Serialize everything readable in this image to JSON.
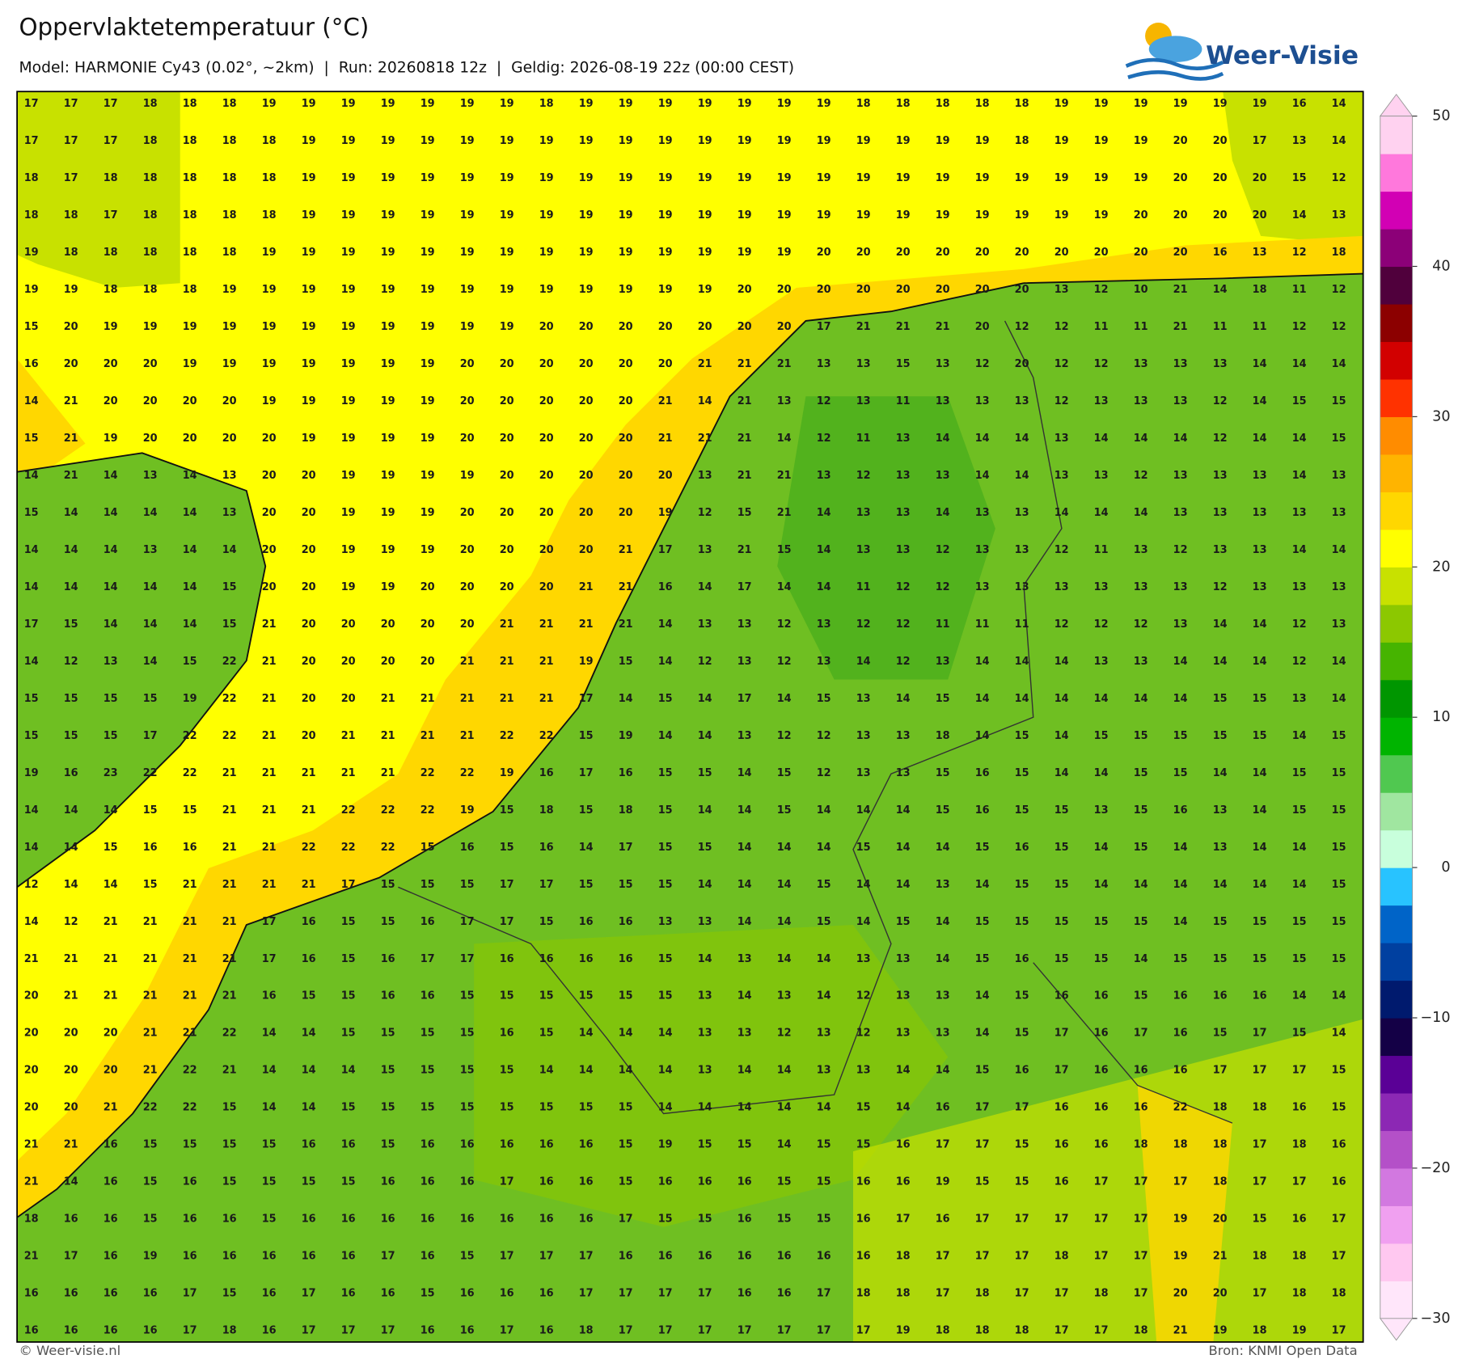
{
  "header": {
    "title": "Oppervlaktetemperatuur (°C)",
    "subtitle": "Model: HARMONIE Cy43 (0.02°, ~2km)  |  Run: 20260818 12z  |  Geldig: 2026-08-19 22z (00:00 CEST)",
    "logo": "Weer-Visie"
  },
  "map": {
    "grid": [
      [
        17,
        17,
        17,
        18,
        18,
        18,
        19,
        19,
        19,
        19,
        19,
        19,
        19,
        18,
        19,
        19,
        19,
        19,
        19,
        19,
        19,
        18,
        18,
        18,
        18,
        18,
        19,
        19,
        19,
        19,
        19,
        19,
        16,
        14
      ],
      [
        17,
        17,
        17,
        18,
        18,
        18,
        18,
        19,
        19,
        19,
        19,
        19,
        19,
        19,
        19,
        19,
        19,
        19,
        19,
        19,
        19,
        19,
        19,
        19,
        19,
        18,
        19,
        19,
        19,
        20,
        20,
        17,
        13,
        14
      ],
      [
        18,
        17,
        18,
        18,
        18,
        18,
        18,
        19,
        19,
        19,
        19,
        19,
        19,
        19,
        19,
        19,
        19,
        19,
        19,
        19,
        19,
        19,
        19,
        19,
        19,
        19,
        19,
        19,
        19,
        20,
        20,
        20,
        15,
        12
      ],
      [
        18,
        18,
        17,
        18,
        18,
        18,
        18,
        19,
        19,
        19,
        19,
        19,
        19,
        19,
        19,
        19,
        19,
        19,
        19,
        19,
        19,
        19,
        19,
        19,
        19,
        19,
        19,
        19,
        20,
        20,
        20,
        20,
        14,
        13
      ],
      [
        19,
        18,
        18,
        18,
        18,
        18,
        19,
        19,
        19,
        19,
        19,
        19,
        19,
        19,
        19,
        19,
        19,
        19,
        19,
        19,
        20,
        20,
        20,
        20,
        20,
        20,
        20,
        20,
        20,
        20,
        16,
        13,
        12,
        18
      ],
      [
        19,
        19,
        18,
        18,
        18,
        19,
        19,
        19,
        19,
        19,
        19,
        19,
        19,
        19,
        19,
        19,
        19,
        19,
        20,
        20,
        20,
        20,
        20,
        20,
        20,
        20,
        13,
        12,
        10,
        21,
        14,
        18,
        11,
        12
      ],
      [
        15,
        20,
        19,
        19,
        19,
        19,
        19,
        19,
        19,
        19,
        19,
        19,
        19,
        20,
        20,
        20,
        20,
        20,
        20,
        20,
        17,
        21,
        21,
        21,
        20,
        12,
        12,
        11,
        11,
        21,
        11,
        11,
        12,
        12
      ],
      [
        16,
        20,
        20,
        20,
        19,
        19,
        19,
        19,
        19,
        19,
        19,
        20,
        20,
        20,
        20,
        20,
        20,
        21,
        21,
        21,
        13,
        13,
        15,
        13,
        12,
        20,
        12,
        12,
        13,
        13,
        13,
        14,
        14,
        14
      ],
      [
        14,
        21,
        20,
        20,
        20,
        20,
        19,
        19,
        19,
        19,
        19,
        20,
        20,
        20,
        20,
        20,
        21,
        14,
        21,
        13,
        12,
        13,
        11,
        13,
        13,
        13,
        12,
        13,
        13,
        13,
        12,
        14,
        15,
        15
      ],
      [
        15,
        21,
        19,
        20,
        20,
        20,
        20,
        19,
        19,
        19,
        19,
        20,
        20,
        20,
        20,
        20,
        21,
        21,
        21,
        14,
        12,
        11,
        13,
        14,
        14,
        14,
        13,
        14,
        14,
        14,
        12,
        14,
        14,
        15
      ],
      [
        14,
        21,
        14,
        13,
        14,
        13,
        20,
        20,
        19,
        19,
        19,
        19,
        20,
        20,
        20,
        20,
        20,
        13,
        21,
        21,
        13,
        12,
        13,
        13,
        14,
        14,
        13,
        13,
        12,
        13,
        13,
        13,
        14,
        13
      ],
      [
        15,
        14,
        14,
        14,
        14,
        13,
        20,
        20,
        19,
        19,
        19,
        20,
        20,
        20,
        20,
        20,
        19,
        12,
        15,
        21,
        14,
        13,
        13,
        14,
        13,
        13,
        14,
        14,
        14,
        13,
        13,
        13,
        13,
        13
      ],
      [
        14,
        14,
        14,
        13,
        14,
        14,
        20,
        20,
        19,
        19,
        19,
        20,
        20,
        20,
        20,
        21,
        17,
        13,
        21,
        15,
        14,
        13,
        13,
        12,
        13,
        13,
        12,
        11,
        13,
        12,
        13,
        13,
        14,
        14
      ],
      [
        14,
        14,
        14,
        14,
        14,
        15,
        20,
        20,
        19,
        19,
        20,
        20,
        20,
        20,
        21,
        21,
        16,
        14,
        17,
        14,
        14,
        11,
        12,
        12,
        13,
        13,
        13,
        13,
        13,
        13,
        12,
        13,
        13,
        13
      ],
      [
        17,
        15,
        14,
        14,
        14,
        15,
        21,
        20,
        20,
        20,
        20,
        20,
        21,
        21,
        21,
        21,
        14,
        13,
        13,
        12,
        13,
        12,
        12,
        11,
        11,
        11,
        12,
        12,
        12,
        13,
        14,
        14,
        12,
        13
      ],
      [
        14,
        12,
        13,
        14,
        15,
        22,
        21,
        20,
        20,
        20,
        20,
        21,
        21,
        21,
        19,
        15,
        14,
        12,
        13,
        12,
        13,
        14,
        12,
        13,
        14,
        14,
        14,
        13,
        13,
        14,
        14,
        14,
        12,
        14
      ],
      [
        15,
        15,
        15,
        15,
        19,
        22,
        21,
        20,
        20,
        21,
        21,
        21,
        21,
        21,
        17,
        14,
        15,
        14,
        17,
        14,
        15,
        13,
        14,
        15,
        14,
        14,
        14,
        14,
        14,
        14,
        15,
        15,
        13,
        14
      ],
      [
        15,
        15,
        15,
        17,
        22,
        22,
        21,
        20,
        21,
        21,
        21,
        21,
        22,
        22,
        15,
        19,
        14,
        14,
        13,
        12,
        12,
        13,
        13,
        18,
        14,
        15,
        14,
        15,
        15,
        15,
        15,
        15,
        14,
        15
      ],
      [
        19,
        16,
        23,
        22,
        22,
        21,
        21,
        21,
        21,
        21,
        22,
        22,
        19,
        16,
        17,
        16,
        15,
        15,
        14,
        15,
        12,
        13,
        13,
        15,
        16,
        15,
        14,
        14,
        15,
        15,
        14,
        14,
        15,
        15
      ],
      [
        14,
        14,
        14,
        15,
        15,
        21,
        21,
        21,
        22,
        22,
        22,
        19,
        15,
        18,
        15,
        18,
        15,
        14,
        14,
        15,
        14,
        14,
        14,
        15,
        16,
        15,
        15,
        13,
        15,
        16,
        13,
        14,
        15,
        15
      ],
      [
        14,
        14,
        15,
        16,
        16,
        21,
        21,
        22,
        22,
        22,
        15,
        16,
        15,
        16,
        14,
        17,
        15,
        15,
        14,
        14,
        14,
        15,
        14,
        14,
        15,
        16,
        15,
        14,
        15,
        14,
        13,
        14,
        14,
        15
      ],
      [
        12,
        14,
        14,
        15,
        21,
        21,
        21,
        21,
        17,
        15,
        15,
        15,
        17,
        17,
        15,
        15,
        15,
        14,
        14,
        14,
        15,
        14,
        14,
        13,
        14,
        15,
        15,
        14,
        14,
        14,
        14,
        14,
        14,
        15
      ],
      [
        14,
        12,
        21,
        21,
        21,
        21,
        17,
        16,
        15,
        15,
        16,
        17,
        17,
        15,
        16,
        16,
        13,
        13,
        14,
        14,
        15,
        14,
        15,
        14,
        15,
        15,
        15,
        15,
        15,
        14,
        15,
        15,
        15,
        15
      ],
      [
        21,
        21,
        21,
        21,
        21,
        21,
        17,
        16,
        15,
        16,
        17,
        17,
        16,
        16,
        16,
        16,
        15,
        14,
        13,
        14,
        14,
        13,
        13,
        14,
        15,
        16,
        15,
        15,
        14,
        15,
        15,
        15,
        15,
        15
      ],
      [
        20,
        21,
        21,
        21,
        21,
        21,
        16,
        15,
        15,
        16,
        16,
        15,
        15,
        15,
        15,
        15,
        15,
        13,
        14,
        13,
        14,
        12,
        13,
        13,
        14,
        15,
        16,
        16,
        15,
        16,
        16,
        16,
        14,
        14
      ],
      [
        20,
        20,
        20,
        21,
        21,
        22,
        14,
        14,
        15,
        15,
        15,
        15,
        16,
        15,
        14,
        14,
        14,
        13,
        13,
        12,
        13,
        12,
        13,
        13,
        14,
        15,
        17,
        16,
        17,
        16,
        15,
        17,
        15,
        14
      ],
      [
        20,
        20,
        20,
        21,
        22,
        21,
        14,
        14,
        14,
        15,
        15,
        15,
        15,
        14,
        14,
        14,
        14,
        13,
        14,
        14,
        13,
        13,
        14,
        14,
        15,
        16,
        17,
        16,
        16,
        16,
        17,
        17,
        17,
        15
      ],
      [
        20,
        20,
        21,
        22,
        22,
        15,
        14,
        14,
        15,
        15,
        15,
        15,
        15,
        15,
        15,
        15,
        14,
        14,
        14,
        14,
        14,
        15,
        14,
        16,
        17,
        17,
        16,
        16,
        16,
        22,
        18,
        18,
        16,
        15
      ],
      [
        21,
        21,
        16,
        15,
        15,
        15,
        15,
        16,
        16,
        15,
        16,
        16,
        16,
        16,
        16,
        15,
        19,
        15,
        15,
        14,
        15,
        15,
        16,
        17,
        17,
        15,
        16,
        16,
        18,
        18,
        18,
        17,
        18,
        16
      ],
      [
        21,
        14,
        16,
        15,
        16,
        15,
        15,
        15,
        15,
        16,
        16,
        16,
        17,
        16,
        16,
        15,
        16,
        16,
        16,
        15,
        15,
        16,
        16,
        19,
        15,
        15,
        16,
        17,
        17,
        17,
        18,
        17,
        17,
        16
      ],
      [
        18,
        16,
        16,
        15,
        16,
        16,
        15,
        16,
        16,
        16,
        16,
        16,
        16,
        16,
        16,
        17,
        15,
        15,
        16,
        15,
        15,
        16,
        17,
        16,
        17,
        17,
        17,
        17,
        17,
        19,
        20,
        15,
        16,
        17
      ],
      [
        21,
        17,
        16,
        19,
        16,
        16,
        16,
        16,
        16,
        17,
        16,
        15,
        17,
        17,
        17,
        16,
        16,
        16,
        16,
        16,
        16,
        16,
        18,
        17,
        17,
        17,
        18,
        17,
        17,
        19,
        21,
        18,
        18,
        17
      ],
      [
        16,
        16,
        16,
        16,
        17,
        15,
        16,
        17,
        16,
        16,
        15,
        16,
        16,
        16,
        17,
        17,
        17,
        17,
        16,
        16,
        17,
        18,
        18,
        17,
        18,
        17,
        17,
        18,
        17,
        20,
        20,
        17,
        18,
        18
      ],
      [
        16,
        16,
        16,
        16,
        17,
        18,
        16,
        17,
        17,
        17,
        16,
        16,
        17,
        16,
        18,
        17,
        17,
        17,
        17,
        17,
        17,
        17,
        19,
        18,
        18,
        18,
        17,
        17,
        18,
        21,
        19,
        18,
        19,
        17
      ]
    ]
  },
  "colorbar": {
    "range": [
      -30,
      50
    ],
    "ticks": [
      50,
      40,
      30,
      20,
      10,
      0,
      {
        "value": -10,
        "label": "−10"
      },
      {
        "value": -20,
        "label": "−20"
      },
      {
        "value": -30,
        "label": "−30"
      }
    ],
    "colors": [
      "#ffe6fa",
      "#ffc8f0",
      "#f0a0f0",
      "#d278e0",
      "#b450c8",
      "#8c28b4",
      "#5a0096",
      "#140046",
      "#001a6e",
      "#0040a0",
      "#0064c8",
      "#28c3ff",
      "#c8ffdc",
      "#a0e6a0",
      "#50c850",
      "#00b400",
      "#009600",
      "#46b400",
      "#8cc800",
      "#c8e100",
      "#ffff00",
      "#ffd700",
      "#ffb400",
      "#ff8c00",
      "#ff3200",
      "#d20000",
      "#8c0000",
      "#50003c",
      "#8c0078",
      "#d200b4",
      "#ff78dc",
      "#ffd2f0"
    ]
  },
  "footer": {
    "left": "© Weer-visie.nl",
    "right": "Bron: KNMI Open Data"
  }
}
